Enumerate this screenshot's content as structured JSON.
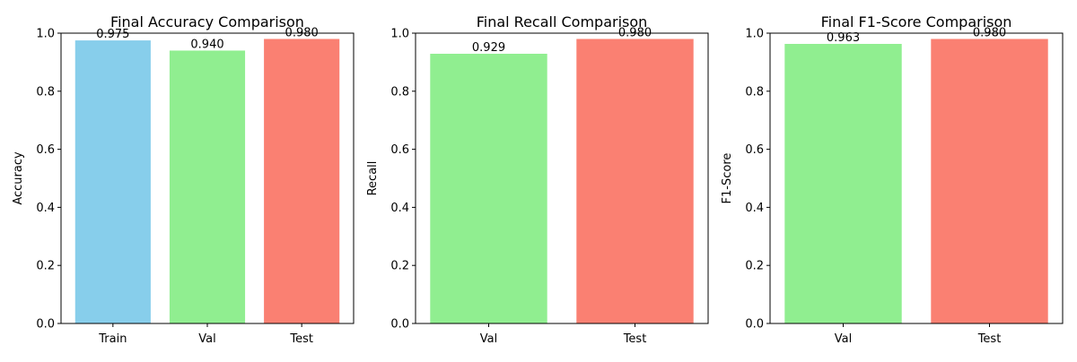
{
  "chart_data": [
    {
      "type": "bar",
      "title": "Final Accuracy Comparison",
      "ylabel": "Accuracy",
      "xlabel": "",
      "categories": [
        "Train",
        "Val",
        "Test"
      ],
      "values": [
        0.975,
        0.94,
        0.98
      ],
      "value_labels": [
        "0.975",
        "0.940",
        "0.980"
      ],
      "colors": [
        "#87ceeb",
        "#90ee90",
        "#fa8072"
      ],
      "ylim": [
        0,
        1.0
      ],
      "yticks": [
        "0.0",
        "0.2",
        "0.4",
        "0.6",
        "0.8",
        "1.0"
      ],
      "grid": false
    },
    {
      "type": "bar",
      "title": "Final Recall Comparison",
      "ylabel": "Recall",
      "xlabel": "",
      "categories": [
        "Val",
        "Test"
      ],
      "values": [
        0.929,
        0.98
      ],
      "value_labels": [
        "0.929",
        "0.980"
      ],
      "colors": [
        "#90ee90",
        "#fa8072"
      ],
      "ylim": [
        0,
        1.0
      ],
      "yticks": [
        "0.0",
        "0.2",
        "0.4",
        "0.6",
        "0.8",
        "1.0"
      ],
      "grid": false
    },
    {
      "type": "bar",
      "title": "Final F1-Score Comparison",
      "ylabel": "F1-Score",
      "xlabel": "",
      "categories": [
        "Val",
        "Test"
      ],
      "values": [
        0.963,
        0.98
      ],
      "value_labels": [
        "0.963",
        "0.980"
      ],
      "colors": [
        "#90ee90",
        "#fa8072"
      ],
      "ylim": [
        0,
        1.0
      ],
      "yticks": [
        "0.0",
        "0.2",
        "0.4",
        "0.6",
        "0.8",
        "1.0"
      ],
      "grid": false
    }
  ]
}
